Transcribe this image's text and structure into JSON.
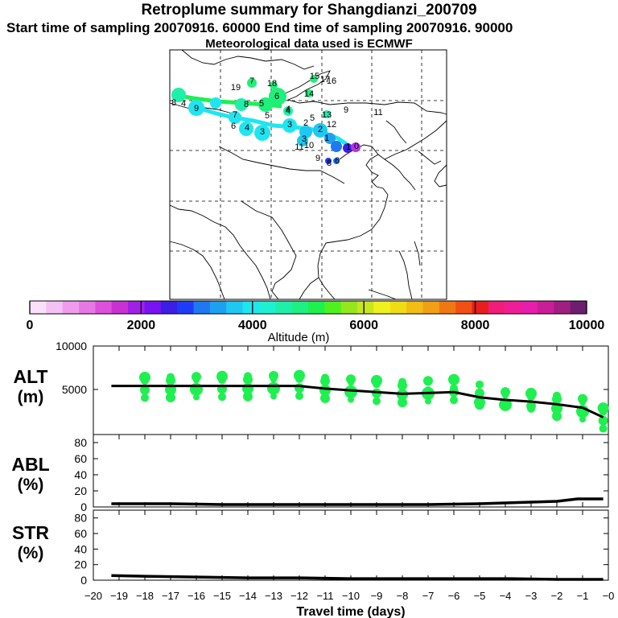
{
  "header": {
    "title": "Retroplume summary for Shangdianzi_200709",
    "sampling": "Start time of sampling 20070916. 60000     End time of sampling 20070916. 90000",
    "met": "Meteorological data used is ECMWF"
  },
  "colorbar": {
    "label": "Altitude (m)",
    "ticks": [
      "0",
      "2000",
      "4000",
      "6000",
      "8000",
      "10000"
    ],
    "colors": [
      "#fbe0fb",
      "#f5c0f5",
      "#ef9cef",
      "#e678e6",
      "#dc50dc",
      "#c832d2",
      "#a020e6",
      "#7814f0",
      "#3c1ee6",
      "#1e3cf5",
      "#1e78f0",
      "#1ea0f0",
      "#1ec8f0",
      "#1ee6f0",
      "#1ef0d2",
      "#1ef0aa",
      "#1ef082",
      "#1ef050",
      "#50f01e",
      "#96e61e",
      "#c8e61e",
      "#f0f01e",
      "#f0dc14",
      "#f0be14",
      "#f0a014",
      "#f07814",
      "#f05014",
      "#e61e1e",
      "#f01e78",
      "#f01e96",
      "#e61eaa",
      "#c81e96",
      "#a01e82",
      "#6e1e6e"
    ]
  },
  "map": {
    "labels": [
      {
        "text": "19",
        "c": "#1ef07a"
      },
      {
        "text": "7",
        "c": "#1ef07a"
      },
      {
        "text": "18",
        "c": "#1ef07a"
      },
      {
        "text": "15",
        "c": "#1ef07a"
      },
      {
        "text": "17",
        "c": "#1ef07a"
      },
      {
        "text": "16",
        "c": "#1ef07a"
      },
      {
        "text": "8",
        "c": "#8ce61e"
      },
      {
        "text": "4",
        "c": "#8ce61e"
      },
      {
        "text": "9",
        "c": "#1ef0d2"
      },
      {
        "text": "8",
        "c": "#1ef07a"
      },
      {
        "text": "5",
        "c": "#1ef07a"
      },
      {
        "text": "6",
        "c": "#1ef07a"
      },
      {
        "text": "14",
        "c": "#1ef07a"
      },
      {
        "text": "5",
        "c": "#1ef0aa"
      },
      {
        "text": "4",
        "c": "#1ef0aa"
      },
      {
        "text": "13",
        "c": "#1ef0aa"
      },
      {
        "text": "9",
        "c": "#1ef0aa"
      },
      {
        "text": "11",
        "c": "#1ef0aa"
      },
      {
        "text": "7",
        "c": "#1ee6f0"
      },
      {
        "text": "6",
        "c": "#1ee6f0"
      },
      {
        "text": "4",
        "c": "#1ee6f0"
      },
      {
        "text": "3",
        "c": "#1ee6f0"
      },
      {
        "text": "4",
        "c": "#1ef0d2"
      },
      {
        "text": "3",
        "c": "#1ee6f0"
      },
      {
        "text": "2",
        "c": "#1ec8f0"
      },
      {
        "text": "5",
        "c": "#1ef0d2"
      },
      {
        "text": "2",
        "c": "#1ec8f0"
      },
      {
        "text": "12",
        "c": "#1ef0aa"
      },
      {
        "text": "3",
        "c": "#1ec8f0"
      },
      {
        "text": "1",
        "c": "#1ea0f0"
      },
      {
        "text": "11",
        "c": "#1ef0d2"
      },
      {
        "text": "10",
        "c": "#1ef0d2"
      },
      {
        "text": "1",
        "c": "#1e3cf5"
      },
      {
        "text": "0",
        "c": "#7814f0"
      },
      {
        "text": "9",
        "c": "#1e3cf5"
      },
      {
        "text": "8",
        "c": "#1e78f0"
      },
      {
        "text": "6",
        "c": "#1e78f0"
      }
    ]
  },
  "panels": {
    "alt": {
      "label": "ALT",
      "unit": "(m)"
    },
    "abl": {
      "label": "ABL",
      "unit": "(%)"
    },
    "str": {
      "label": "STR",
      "unit": "(%)"
    }
  },
  "chart_data": {
    "type": "line",
    "title": "Retroplume summary for Shangdianzi_200709",
    "xlabel": "Travel time (days)",
    "xlim": [
      -20,
      0
    ],
    "x_tick_labels": [
      "−20",
      "−19",
      "−18",
      "−17",
      "−16",
      "−15",
      "−14",
      "−13",
      "−12",
      "−11",
      "−10",
      "−9",
      "−8",
      "−7",
      "−6",
      "−5",
      "−4",
      "−3",
      "−2",
      "−1",
      "−0"
    ],
    "x_ticks": [
      -20,
      -19,
      -18,
      -17,
      -16,
      -15,
      -14,
      -13,
      -12,
      -11,
      -10,
      -9,
      -8,
      -7,
      -6,
      -5,
      -4,
      -3,
      -2,
      -1,
      0
    ],
    "panels": [
      {
        "name": "ALT",
        "ylabel": "ALT (m)",
        "ylim": [
          0,
          10000
        ],
        "y_ticks": [
          5000,
          10000
        ],
        "y_tick_labels": [
          "5000",
          "10000"
        ],
        "x": [
          -19.3,
          -18,
          -17,
          -16,
          -15,
          -14,
          -13,
          -12,
          -11,
          -10,
          -9,
          -8,
          -7,
          -6,
          -5,
          -4,
          -3,
          -2,
          -1,
          -0.2
        ],
        "values": [
          5400,
          5400,
          5400,
          5400,
          5400,
          5400,
          5400,
          5400,
          5100,
          4900,
          4700,
          4500,
          4600,
          4700,
          4100,
          3800,
          3600,
          3300,
          2900,
          1800
        ],
        "cluster_color": "#1ef050"
      },
      {
        "name": "ABL",
        "ylabel": "ABL (%)",
        "ylim": [
          0,
          90
        ],
        "y_ticks": [
          0,
          20,
          40,
          60,
          80
        ],
        "y_tick_labels": [
          "0",
          "20",
          "40",
          "60",
          "80"
        ],
        "x": [
          -19.3,
          -17,
          -15,
          -13,
          -11,
          -9,
          -7,
          -5,
          -4,
          -3,
          -2,
          -1.2,
          -0.2
        ],
        "values": [
          4,
          4,
          3,
          3,
          3,
          3,
          3,
          4,
          5,
          6,
          7,
          10,
          10
        ]
      },
      {
        "name": "STR",
        "ylabel": "STR (%)",
        "ylim": [
          0,
          90
        ],
        "y_ticks": [
          0,
          20,
          40,
          60,
          80
        ],
        "y_tick_labels": [
          "0",
          "20",
          "40",
          "60",
          "80"
        ],
        "x": [
          -19.3,
          -18,
          -16,
          -14,
          -12,
          -10,
          -8,
          -6,
          -4,
          -2,
          -0.2
        ],
        "values": [
          6,
          5,
          4,
          3,
          3,
          2,
          2,
          2,
          2,
          1,
          1
        ]
      }
    ]
  }
}
